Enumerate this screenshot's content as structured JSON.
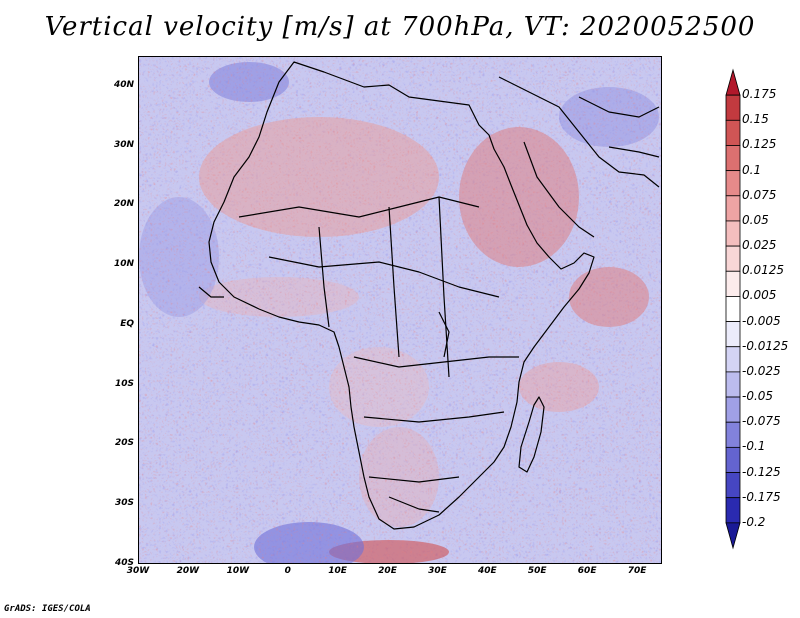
{
  "title": "Vertical velocity [m/s] at 700hPa, VT: 2020052500",
  "credit": "GrADS: IGES/COLA",
  "map": {
    "lon_range": [
      -30,
      75
    ],
    "lat_range": [
      -40,
      45
    ],
    "lat_ticks": [
      {
        "value": 40,
        "label": "40N"
      },
      {
        "value": 30,
        "label": "30N"
      },
      {
        "value": 20,
        "label": "20N"
      },
      {
        "value": 10,
        "label": "10N"
      },
      {
        "value": 0,
        "label": "EQ"
      },
      {
        "value": -10,
        "label": "10S"
      },
      {
        "value": -20,
        "label": "20S"
      },
      {
        "value": -30,
        "label": "30S"
      },
      {
        "value": -40,
        "label": "40S"
      }
    ],
    "lon_ticks": [
      {
        "value": -30,
        "label": "30W"
      },
      {
        "value": -20,
        "label": "20W"
      },
      {
        "value": -10,
        "label": "10W"
      },
      {
        "value": 0,
        "label": "0"
      },
      {
        "value": 10,
        "label": "10E"
      },
      {
        "value": 20,
        "label": "20E"
      },
      {
        "value": 30,
        "label": "30E"
      },
      {
        "value": 40,
        "label": "40E"
      },
      {
        "value": 50,
        "label": "50E"
      },
      {
        "value": 60,
        "label": "60E"
      },
      {
        "value": 70,
        "label": "70E"
      }
    ]
  },
  "colorbar": {
    "levels": [
      "0.175",
      "0.15",
      "0.125",
      "0.1",
      "0.075",
      "0.05",
      "0.025",
      "0.0125",
      "0.005",
      "-0.005",
      "-0.0125",
      "-0.025",
      "-0.05",
      "-0.075",
      "-0.1",
      "-0.125",
      "-0.175",
      "-0.2"
    ],
    "colors": [
      "#b2182b",
      "#c23a3f",
      "#d05555",
      "#dc7070",
      "#e68a8a",
      "#eea4a4",
      "#f4bebe",
      "#f8d6d6",
      "#fcecec",
      "#ffffff",
      "#ececfb",
      "#d4d4f5",
      "#bcbcee",
      "#a0a0e6",
      "#8282dc",
      "#6464d0",
      "#4646c2",
      "#2a2ab0",
      "#1a1a96"
    ]
  }
}
